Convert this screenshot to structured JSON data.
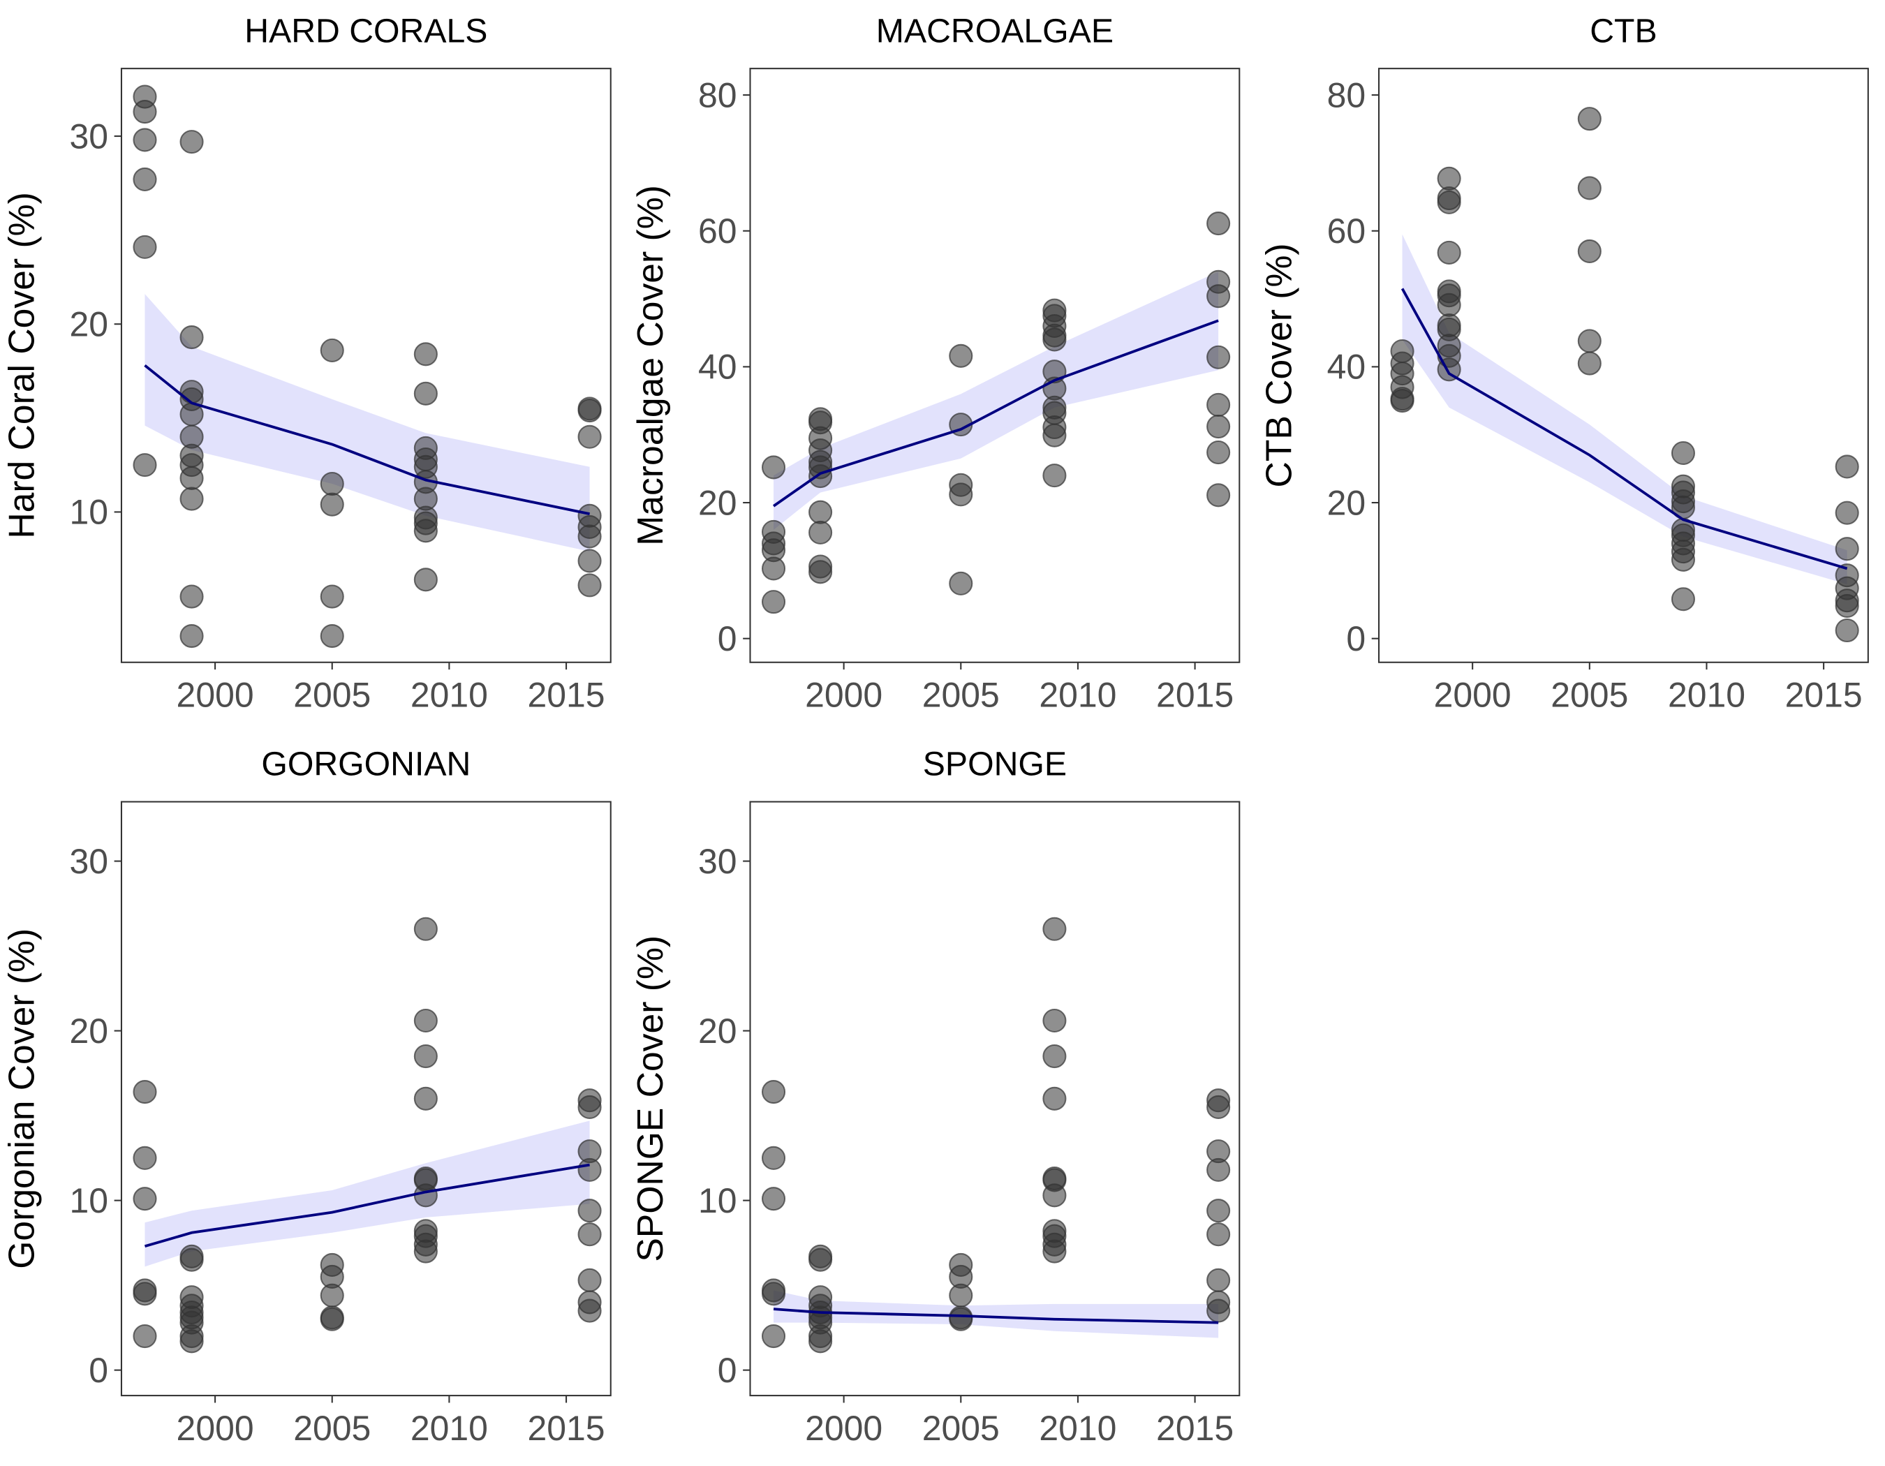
{
  "chart_data": [
    {
      "type": "scatter",
      "title": "HARD CORALS",
      "y_label": "Hard Coral Cover (%)",
      "xlim": [
        1996,
        2016.9
      ],
      "xticks": [
        2000,
        2005,
        2010,
        2015
      ],
      "ylim": [
        2.0,
        33.6
      ],
      "yticks": [
        10,
        20,
        30
      ],
      "point_color": "#333333",
      "line_color": "#000080",
      "band_color": "#e2e2fc",
      "points": [
        {
          "x": 1997,
          "values": [
            32.1,
            31.3,
            29.8,
            27.7,
            24.1,
            12.5
          ]
        },
        {
          "x": 1999,
          "values": [
            29.7,
            19.3,
            16.4,
            16.0,
            15.2,
            14.0,
            13.0,
            12.5,
            11.8,
            10.7,
            5.5,
            3.4
          ]
        },
        {
          "x": 2005,
          "values": [
            18.6,
            11.5,
            10.4,
            5.5,
            3.4
          ]
        },
        {
          "x": 2009,
          "values": [
            18.4,
            16.3,
            13.4,
            12.8,
            12.4,
            11.6,
            10.7,
            9.7,
            9.4,
            9.0,
            6.4
          ]
        },
        {
          "x": 2016,
          "values": [
            15.5,
            15.4,
            14.0,
            9.8,
            9.2,
            8.7,
            7.4,
            6.1
          ]
        }
      ],
      "fit": {
        "x": [
          1997,
          1999,
          2005,
          2009,
          2016
        ],
        "values": [
          17.8,
          15.8,
          13.6,
          11.7,
          9.9
        ],
        "lower": [
          14.6,
          13.3,
          11.5,
          9.8,
          7.9
        ],
        "upper": [
          21.6,
          18.8,
          16.0,
          14.2,
          12.4
        ]
      }
    },
    {
      "type": "scatter",
      "title": "MACROALGAE",
      "y_label": "Macroalgae Cover (%)",
      "xlim": [
        1996,
        2016.9
      ],
      "xticks": [
        2000,
        2005,
        2010,
        2015
      ],
      "ylim": [
        -3.5,
        83.9
      ],
      "yticks": [
        0,
        20,
        40,
        60,
        80
      ],
      "point_color": "#333333",
      "line_color": "#000080",
      "band_color": "#e2e2fc",
      "points": [
        {
          "x": 1997,
          "values": [
            25.2,
            15.7,
            14.0,
            13.0,
            10.3,
            5.4
          ]
        },
        {
          "x": 1999,
          "values": [
            32.3,
            31.8,
            29.5,
            27.7,
            26.0,
            25.2,
            23.9,
            18.6,
            15.6,
            10.6,
            9.8
          ]
        },
        {
          "x": 2005,
          "values": [
            41.6,
            31.5,
            22.6,
            21.2,
            8.1
          ]
        },
        {
          "x": 2009,
          "values": [
            48.3,
            47.5,
            46.0,
            44.6,
            44.0,
            39.3,
            36.8,
            34.0,
            33.2,
            31.1,
            29.9,
            24.0
          ]
        },
        {
          "x": 2016,
          "values": [
            61.1,
            52.5,
            50.4,
            41.4,
            34.4,
            31.2,
            27.4,
            21.1
          ]
        }
      ],
      "fit": {
        "x": [
          1997,
          1999,
          2005,
          2009,
          2016
        ],
        "values": [
          19.5,
          24.3,
          30.8,
          38.0,
          46.8
        ],
        "lower": [
          16.0,
          21.5,
          26.5,
          34.0,
          39.5
        ],
        "upper": [
          24.0,
          28.0,
          36.0,
          43.0,
          54.0
        ]
      }
    },
    {
      "type": "scatter",
      "title": "CTB",
      "y_label": "CTB Cover (%)",
      "xlim": [
        1996,
        2016.9
      ],
      "xticks": [
        2000,
        2005,
        2010,
        2015
      ],
      "ylim": [
        -3.5,
        83.9
      ],
      "yticks": [
        0,
        20,
        40,
        60,
        80
      ],
      "point_color": "#333333",
      "line_color": "#000080",
      "band_color": "#e2e2fc",
      "points": [
        {
          "x": 1997,
          "values": [
            42.3,
            40.5,
            39.0,
            37.0,
            35.3,
            35.0
          ]
        },
        {
          "x": 1999,
          "values": [
            67.7,
            64.8,
            64.2,
            56.8,
            51.1,
            50.5,
            49.1,
            46.1,
            45.5,
            43.1,
            41.6,
            39.6
          ]
        },
        {
          "x": 2005,
          "values": [
            76.5,
            66.3,
            57.0,
            43.8,
            40.5
          ]
        },
        {
          "x": 2009,
          "values": [
            27.3,
            22.4,
            21.5,
            20.2,
            19.3,
            16.0,
            15.2,
            14.0,
            12.8,
            11.6,
            5.8
          ]
        },
        {
          "x": 2016,
          "values": [
            25.3,
            18.5,
            13.2,
            9.3,
            7.4,
            5.6,
            4.8,
            1.2
          ]
        }
      ],
      "fit": {
        "x": [
          1997,
          1999,
          2005,
          2009,
          2016
        ],
        "values": [
          51.5,
          39.0,
          27.0,
          17.5,
          10.3
        ],
        "lower": [
          44.0,
          34.0,
          23.0,
          15.0,
          8.0
        ],
        "upper": [
          59.5,
          45.0,
          31.5,
          21.0,
          13.0
        ]
      }
    },
    {
      "type": "scatter",
      "title": "GORGONIAN",
      "y_label": "Gorgonian Cover (%)",
      "xlim": [
        1996,
        2016.9
      ],
      "xticks": [
        2000,
        2005,
        2010,
        2015
      ],
      "ylim": [
        -1.5,
        33.5
      ],
      "yticks": [
        0,
        10,
        20,
        30
      ],
      "point_color": "#333333",
      "line_color": "#000080",
      "band_color": "#e2e2fc",
      "points": [
        {
          "x": 1997,
          "values": [
            16.4,
            12.5,
            10.1,
            4.7,
            4.5,
            2.0
          ]
        },
        {
          "x": 1999,
          "values": [
            6.7,
            6.5,
            4.3,
            3.8,
            3.4,
            3.1,
            2.8,
            2.0,
            1.7
          ]
        },
        {
          "x": 2005,
          "values": [
            6.2,
            5.5,
            4.4,
            3.1,
            3.0
          ]
        },
        {
          "x": 2009,
          "values": [
            26.0,
            20.6,
            18.5,
            16.0,
            11.3,
            11.2,
            10.3,
            8.2,
            7.9,
            7.4,
            7.0
          ]
        },
        {
          "x": 2016,
          "values": [
            15.9,
            15.5,
            12.9,
            11.8,
            9.4,
            8.0,
            5.3,
            4.0,
            3.5
          ]
        }
      ],
      "fit": {
        "x": [
          1997,
          1999,
          2005,
          2009,
          2016
        ],
        "values": [
          7.3,
          8.1,
          9.3,
          10.5,
          12.1
        ],
        "lower": [
          6.1,
          7.0,
          8.1,
          9.0,
          9.8
        ],
        "upper": [
          8.7,
          9.4,
          10.6,
          12.2,
          14.7
        ]
      }
    },
    {
      "type": "scatter",
      "title": "SPONGE",
      "y_label": "SPONGE Cover (%)",
      "xlim": [
        1996,
        2016.9
      ],
      "xticks": [
        2000,
        2005,
        2010,
        2015
      ],
      "ylim": [
        -1.5,
        33.5
      ],
      "yticks": [
        0,
        10,
        20,
        30
      ],
      "point_color": "#333333",
      "line_color": "#000080",
      "band_color": "#e2e2fc",
      "points": [
        {
          "x": 1997,
          "values": [
            16.4,
            12.5,
            10.1,
            4.7,
            4.5,
            2.0
          ]
        },
        {
          "x": 1999,
          "values": [
            6.7,
            6.5,
            4.3,
            3.8,
            3.4,
            3.1,
            2.8,
            2.0,
            1.7
          ]
        },
        {
          "x": 2005,
          "values": [
            6.2,
            5.5,
            4.4,
            3.1,
            3.0
          ]
        },
        {
          "x": 2009,
          "values": [
            26.0,
            20.6,
            18.5,
            16.0,
            11.3,
            11.2,
            10.3,
            8.2,
            7.9,
            7.4,
            7.0
          ]
        },
        {
          "x": 2016,
          "values": [
            15.9,
            15.5,
            12.9,
            11.8,
            9.4,
            8.0,
            5.3,
            4.0,
            3.5
          ]
        }
      ],
      "fit": {
        "x": [
          1997,
          1999,
          2005,
          2009,
          2016
        ],
        "values": [
          3.6,
          3.4,
          3.2,
          3.0,
          2.8
        ],
        "lower": [
          2.8,
          2.8,
          2.7,
          2.3,
          1.9
        ],
        "upper": [
          4.7,
          4.1,
          3.8,
          3.9,
          3.9
        ]
      }
    }
  ]
}
